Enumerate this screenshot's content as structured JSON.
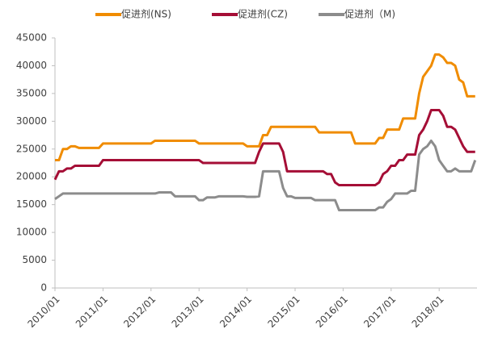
{
  "chart_data": {
    "type": "line",
    "categories": [
      "2010/01",
      null,
      null,
      null,
      null,
      null,
      null,
      null,
      null,
      null,
      null,
      null,
      "2011/01",
      null,
      null,
      null,
      null,
      null,
      null,
      null,
      null,
      null,
      null,
      null,
      "2012/01",
      null,
      null,
      null,
      null,
      null,
      null,
      null,
      null,
      null,
      null,
      null,
      "2013/01",
      null,
      null,
      null,
      null,
      null,
      null,
      null,
      null,
      null,
      null,
      null,
      "2014/01",
      null,
      null,
      null,
      null,
      null,
      null,
      null,
      null,
      null,
      null,
      null,
      "2015/01",
      null,
      null,
      null,
      null,
      null,
      null,
      null,
      null,
      null,
      null,
      null,
      "2016/01",
      null,
      null,
      null,
      null,
      null,
      null,
      null,
      null,
      null,
      null,
      null,
      "2017/01",
      null,
      null,
      null,
      null,
      null,
      null,
      null,
      null,
      null,
      null,
      null,
      "2018/01",
      null,
      null,
      null,
      null,
      null,
      null,
      null,
      null,
      null
    ],
    "series": [
      {
        "name": "促进剂(NS)",
        "color": "#f08c00",
        "values": [
          23000,
          23000,
          25000,
          25000,
          25500,
          25500,
          25200,
          25200,
          25200,
          25200,
          25200,
          25200,
          26000,
          26000,
          26000,
          26000,
          26000,
          26000,
          26000,
          26000,
          26000,
          26000,
          26000,
          26000,
          26000,
          26500,
          26500,
          26500,
          26500,
          26500,
          26500,
          26500,
          26500,
          26500,
          26500,
          26500,
          26000,
          26000,
          26000,
          26000,
          26000,
          26000,
          26000,
          26000,
          26000,
          26000,
          26000,
          26000,
          25500,
          25500,
          25500,
          25500,
          27500,
          27500,
          29000,
          29000,
          29000,
          29000,
          29000,
          29000,
          29000,
          29000,
          29000,
          29000,
          29000,
          29000,
          28000,
          28000,
          28000,
          28000,
          28000,
          28000,
          28000,
          28000,
          28000,
          26000,
          26000,
          26000,
          26000,
          26000,
          26000,
          27000,
          27000,
          28500,
          28500,
          28500,
          28500,
          30500,
          30500,
          30500,
          30500,
          35000,
          38000,
          39000,
          40000,
          42000,
          42000,
          41500,
          40500,
          40500,
          40000,
          37500,
          37000,
          34500,
          34500,
          34500
        ]
      },
      {
        "name": "促进剂(CZ)",
        "color": "#a50e36",
        "values": [
          19500,
          21000,
          21000,
          21500,
          21500,
          22000,
          22000,
          22000,
          22000,
          22000,
          22000,
          22000,
          23000,
          23000,
          23000,
          23000,
          23000,
          23000,
          23000,
          23000,
          23000,
          23000,
          23000,
          23000,
          23000,
          23000,
          23000,
          23000,
          23000,
          23000,
          23000,
          23000,
          23000,
          23000,
          23000,
          23000,
          23000,
          22500,
          22500,
          22500,
          22500,
          22500,
          22500,
          22500,
          22500,
          22500,
          22500,
          22500,
          22500,
          22500,
          22500,
          24500,
          26000,
          26000,
          26000,
          26000,
          26000,
          24500,
          21000,
          21000,
          21000,
          21000,
          21000,
          21000,
          21000,
          21000,
          21000,
          21000,
          20500,
          20500,
          19000,
          18500,
          18500,
          18500,
          18500,
          18500,
          18500,
          18500,
          18500,
          18500,
          18500,
          19000,
          20500,
          21000,
          22000,
          22000,
          23000,
          23000,
          24000,
          24000,
          24000,
          27500,
          28500,
          30000,
          32000,
          32000,
          32000,
          31000,
          29000,
          29000,
          28500,
          27000,
          25500,
          24500,
          24500,
          24500
        ]
      },
      {
        "name": "促进剂（M)",
        "color": "#8c8c8c",
        "values": [
          16000,
          16500,
          17000,
          17000,
          17000,
          17000,
          17000,
          17000,
          17000,
          17000,
          17000,
          17000,
          17000,
          17000,
          17000,
          17000,
          17000,
          17000,
          17000,
          17000,
          17000,
          17000,
          17000,
          17000,
          17000,
          17000,
          17200,
          17200,
          17200,
          17200,
          16500,
          16500,
          16500,
          16500,
          16500,
          16500,
          15800,
          15800,
          16300,
          16300,
          16300,
          16500,
          16500,
          16500,
          16500,
          16500,
          16500,
          16500,
          16400,
          16400,
          16400,
          16500,
          21000,
          21000,
          21000,
          21000,
          21000,
          18000,
          16500,
          16500,
          16200,
          16200,
          16200,
          16200,
          16200,
          15800,
          15800,
          15800,
          15800,
          15800,
          15800,
          14000,
          14000,
          14000,
          14000,
          14000,
          14000,
          14000,
          14000,
          14000,
          14000,
          14500,
          14500,
          15500,
          16000,
          17000,
          17000,
          17000,
          17000,
          17500,
          17500,
          24000,
          25000,
          25500,
          26500,
          25500,
          23000,
          22000,
          21000,
          21000,
          21500,
          21000,
          21000,
          21000,
          21000,
          23000
        ]
      }
    ],
    "ylim": [
      0,
      45000
    ],
    "yticks": [
      0,
      5000,
      10000,
      15000,
      20000,
      25000,
      30000,
      35000,
      40000,
      45000
    ],
    "legend": "top"
  }
}
